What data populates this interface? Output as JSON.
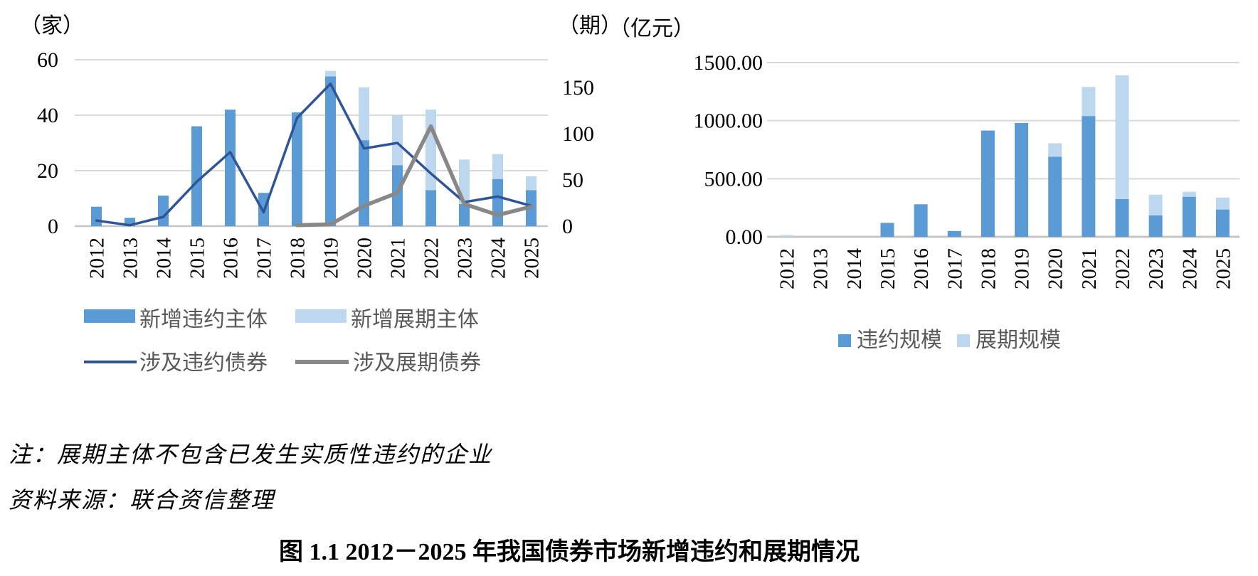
{
  "figure": {
    "note": "注：展期主体不包含已发生实质性违约的企业",
    "source": "资料来源：联合资信整理",
    "caption": "图 1.1  2012－2025 年我国债券市场新增违约和展期情况"
  },
  "colors": {
    "bar_dark": "#5B9BD5",
    "bar_light": "#BDD7EE",
    "line_blue": "#2F5597",
    "line_gray": "#888888",
    "grid": "#D9D9D9",
    "axis_line": "#C6C6C6",
    "axis_text": "#000000",
    "legend_text": "#595959"
  },
  "chart_data": [
    {
      "type": "bar",
      "subtype": "bar-line-combo",
      "categories": [
        "2012",
        "2013",
        "2014",
        "2015",
        "2016",
        "2017",
        "2018",
        "2019",
        "2020",
        "2021",
        "2022",
        "2023",
        "2024",
        "2025"
      ],
      "left_axis": {
        "unit": "（家）",
        "min": 0,
        "max": 60,
        "ticks": [
          0,
          20,
          40,
          60
        ],
        "tick_labels": [
          "0",
          "20",
          "40",
          "60"
        ]
      },
      "right_axis": {
        "unit": "（期）",
        "min": 0,
        "max": 180,
        "ticks": [
          0,
          50,
          100,
          150
        ],
        "tick_labels": [
          "0",
          "50",
          "100",
          "150"
        ]
      },
      "series": [
        {
          "name": "新增违约主体",
          "type": "bar",
          "axis": "left",
          "color": "#5B9BD5",
          "values": [
            7,
            3,
            11,
            36,
            42,
            12,
            41,
            54,
            31,
            22,
            13,
            8,
            17,
            13
          ]
        },
        {
          "name": "新增展期主体",
          "type": "bar",
          "axis": "left",
          "stacked": true,
          "color": "#BDD7EE",
          "values": [
            0,
            0,
            0,
            0,
            0,
            0,
            0,
            2,
            19,
            18,
            29,
            16,
            9,
            5
          ]
        },
        {
          "name": "涉及违约债券",
          "type": "line",
          "axis": "right",
          "color": "#2F5597",
          "stroke_width": 3.5,
          "values": [
            6,
            1,
            10,
            48,
            80,
            15,
            117,
            154,
            84,
            90,
            57,
            26,
            32,
            22
          ]
        },
        {
          "name": "涉及展期债券",
          "type": "line",
          "axis": "right",
          "color": "#888888",
          "stroke_width": 5.5,
          "values": [
            null,
            null,
            null,
            null,
            null,
            null,
            1,
            2,
            22,
            36,
            108,
            24,
            12,
            21
          ]
        }
      ],
      "legend_position": "bottom",
      "grid": true
    },
    {
      "type": "bar",
      "subtype": "stacked-bar",
      "categories": [
        "2012",
        "2013",
        "2014",
        "2015",
        "2016",
        "2017",
        "2018",
        "2019",
        "2020",
        "2021",
        "2022",
        "2023",
        "2024",
        "2025"
      ],
      "y_axis": {
        "unit": "（亿元）",
        "min": 0,
        "max": 1550,
        "ticks": [
          0,
          500,
          1000,
          1500
        ],
        "tick_labels": [
          "0.00",
          "500.00",
          "1000.00",
          "1500.00"
        ]
      },
      "series": [
        {
          "name": "违约规模",
          "color": "#5B9BD5",
          "values": [
            0,
            0,
            0,
            120,
            280,
            50,
            915,
            980,
            690,
            1040,
            325,
            185,
            345,
            235
          ]
        },
        {
          "name": "展期规模",
          "color": "#BDD7EE",
          "values": [
            15,
            0,
            0,
            0,
            0,
            0,
            0,
            0,
            115,
            250,
            1065,
            178,
            43,
            103
          ]
        }
      ],
      "legend_position": "bottom",
      "grid": true
    }
  ]
}
